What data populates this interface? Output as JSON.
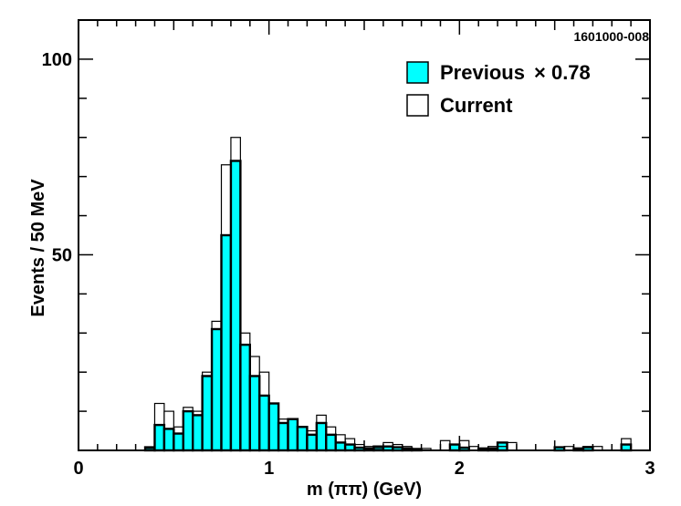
{
  "figure_id": "1601000-008",
  "colors": {
    "previous_fill": "#00ffff",
    "current_outline": "#000000"
  },
  "chart_data": {
    "type": "bar",
    "title": "",
    "xlabel": "m (ππ) (GeV)",
    "ylabel": "Events / 50 MeV",
    "xlim": [
      0,
      3
    ],
    "ylim": [
      0,
      110
    ],
    "x_ticks": [
      0,
      1,
      2,
      3
    ],
    "y_ticks": [
      50,
      100
    ],
    "grid": false,
    "legend_position": "top-right",
    "bin_width": 0.05,
    "bin_starts": [
      0.35,
      0.4,
      0.45,
      0.5,
      0.55,
      0.6,
      0.65,
      0.7,
      0.75,
      0.8,
      0.85,
      0.9,
      0.95,
      1.0,
      1.05,
      1.1,
      1.15,
      1.2,
      1.25,
      1.3,
      1.35,
      1.4,
      1.45,
      1.5,
      1.55,
      1.6,
      1.65,
      1.7,
      1.75,
      1.8,
      1.85,
      1.9,
      1.95,
      2.0,
      2.05,
      2.1,
      2.15,
      2.2,
      2.25,
      2.3,
      2.35,
      2.4,
      2.45,
      2.5,
      2.55,
      2.6,
      2.65,
      2.7,
      2.75,
      2.8,
      2.85
    ],
    "series": [
      {
        "name": "Previous",
        "scale_label": "× 0.78",
        "style": "filled",
        "values": [
          0.8,
          6.5,
          5.5,
          4.3,
          10,
          9,
          19,
          31,
          55,
          74,
          27,
          19,
          14,
          12,
          7,
          8,
          6,
          4,
          7,
          4,
          2,
          1.5,
          0.7,
          0.5,
          1,
          1,
          0.8,
          0.5,
          0.3,
          0,
          0,
          0,
          1.5,
          0.7,
          0,
          0.5,
          0.5,
          2,
          0,
          0,
          0,
          0,
          0,
          0.8,
          0,
          0.5,
          0.8,
          0,
          0,
          0,
          1.5
        ]
      },
      {
        "name": "Current",
        "style": "outline",
        "values": [
          0.5,
          12,
          10,
          6,
          11,
          10,
          20,
          33,
          73,
          80,
          30,
          24,
          20,
          12,
          8,
          8,
          6,
          5,
          9,
          6,
          4,
          3,
          1.5,
          1,
          0.5,
          2,
          1.5,
          1,
          0.5,
          0.5,
          0,
          2.5,
          0,
          2.5,
          1,
          0,
          1,
          1,
          2,
          0,
          0,
          0,
          0,
          0,
          1,
          0,
          1,
          1,
          0,
          0,
          3
        ]
      }
    ]
  }
}
